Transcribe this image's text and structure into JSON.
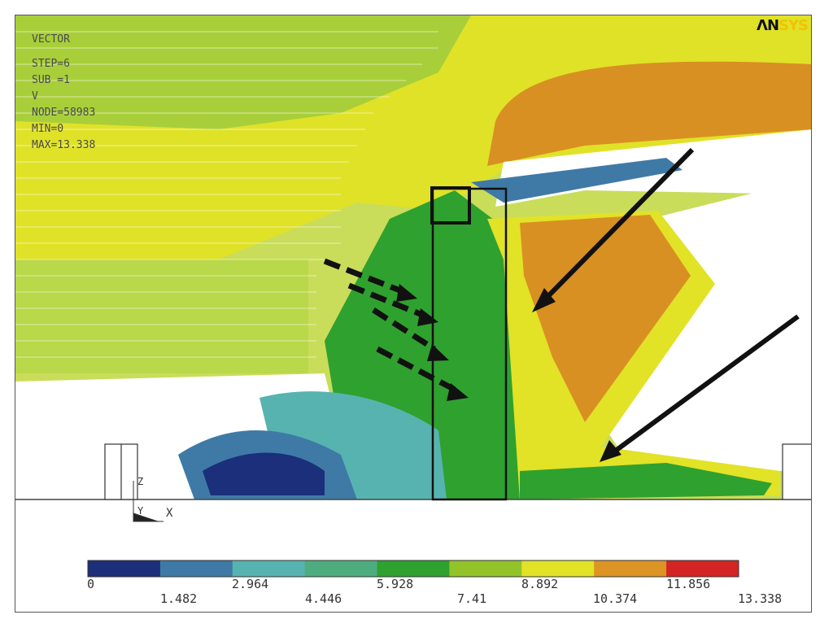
{
  "info": {
    "title": "VECTOR",
    "lines": [
      "STEP=6",
      "SUB =1",
      "V",
      "NODE=58983",
      "MIN=0",
      "MAX=13.338"
    ]
  },
  "logo": {
    "part1": "ΛN",
    "part2": "SYS"
  },
  "triad": {
    "z": "Z",
    "y": "Y",
    "x": "X"
  },
  "legend": {
    "colors": [
      "#1b2f7a",
      "#3f7aa6",
      "#57b3b0",
      "#4ead7e",
      "#2fa12f",
      "#92c42a",
      "#e2e227",
      "#dc9424",
      "#d42424"
    ],
    "upper_ticks": [
      "0",
      "2.964",
      "5.928",
      "8.892",
      "11.856"
    ],
    "lower_ticks": [
      "1.482",
      "4.446",
      "7.41",
      "10.374",
      "13.338"
    ]
  }
}
